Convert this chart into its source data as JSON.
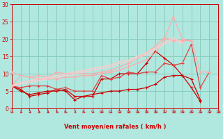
{
  "xlabel": "Vent moyen/en rafales ( km/h )",
  "xlabel_color": "#cc0000",
  "background_color": "#b0e8e0",
  "grid_color": "#88ccbb",
  "text_color": "#cc0000",
  "xlim": [
    0,
    23
  ],
  "ylim": [
    0,
    30
  ],
  "yticks": [
    0,
    5,
    10,
    15,
    20,
    25,
    30
  ],
  "xticks": [
    0,
    1,
    2,
    3,
    4,
    5,
    6,
    7,
    8,
    9,
    10,
    11,
    12,
    13,
    14,
    15,
    16,
    17,
    18,
    19,
    20,
    21,
    22,
    23
  ],
  "series": [
    {
      "x": [
        0,
        1,
        2,
        3,
        4,
        5,
        6,
        7,
        8,
        9,
        10,
        11,
        12,
        13,
        14,
        15,
        16,
        17,
        18,
        19,
        20,
        21,
        22,
        23
      ],
      "y": [
        6.5,
        5.5,
        3.5,
        4.0,
        4.5,
        5.5,
        5.0,
        2.5,
        3.5,
        3.5,
        8.5,
        8.5,
        10.0,
        10.0,
        10.0,
        13.0,
        16.5,
        14.5,
        12.5,
        9.5,
        6.0,
        2.0,
        null,
        null
      ],
      "color": "#cc0000",
      "lw": 0.9,
      "marker": "+",
      "ms": 3.5
    },
    {
      "x": [
        0,
        1,
        2,
        3,
        4,
        5,
        6,
        7,
        8,
        9,
        10,
        11,
        12,
        13,
        14,
        15,
        16,
        17,
        18,
        19,
        20,
        21,
        22,
        23
      ],
      "y": [
        6.5,
        5.0,
        4.0,
        4.5,
        5.0,
        5.0,
        5.5,
        3.5,
        3.5,
        4.0,
        4.5,
        5.0,
        5.0,
        5.5,
        5.5,
        6.0,
        7.0,
        9.0,
        9.5,
        9.5,
        8.5,
        2.5,
        null,
        null
      ],
      "color": "#cc0000",
      "lw": 0.9,
      "marker": "+",
      "ms": 3.5
    },
    {
      "x": [
        0,
        1,
        2,
        3,
        4,
        5,
        6,
        7,
        8,
        9,
        10,
        11,
        12,
        13,
        14,
        15,
        16,
        17,
        18,
        19,
        20,
        21,
        22,
        23
      ],
      "y": [
        6.5,
        6.0,
        6.5,
        6.5,
        6.5,
        5.5,
        6.0,
        5.0,
        5.0,
        5.0,
        9.5,
        8.5,
        9.0,
        10.5,
        10.0,
        10.5,
        10.5,
        13.0,
        12.5,
        13.0,
        18.5,
        6.0,
        10.5,
        null
      ],
      "color": "#dd4444",
      "lw": 0.9,
      "marker": "+",
      "ms": 3.5
    },
    {
      "x": [
        0,
        1,
        2,
        3,
        4,
        5,
        6,
        7,
        8,
        9,
        10,
        11,
        12,
        13,
        14,
        15,
        16,
        17,
        18,
        19,
        20,
        21,
        22,
        23
      ],
      "y": [
        6.5,
        9.5,
        9.0,
        8.5,
        8.5,
        8.5,
        9.0,
        9.0,
        9.5,
        9.5,
        10.0,
        10.5,
        11.0,
        12.0,
        13.0,
        14.0,
        16.0,
        20.0,
        26.5,
        20.0,
        19.5,
        null,
        null,
        null
      ],
      "color": "#ffaaaa",
      "lw": 0.9,
      "marker": "+",
      "ms": 3.5
    },
    {
      "x": [
        0,
        1,
        2,
        3,
        4,
        5,
        6,
        7,
        8,
        9,
        10,
        11,
        12,
        13,
        14,
        15,
        16,
        17,
        18,
        19,
        20,
        21,
        22,
        23
      ],
      "y": [
        10.5,
        9.5,
        9.0,
        9.5,
        9.0,
        10.5,
        10.0,
        10.0,
        10.0,
        10.0,
        10.5,
        11.0,
        12.0,
        13.0,
        14.5,
        16.0,
        18.0,
        20.5,
        19.5,
        19.5,
        19.5,
        10.5,
        10.5,
        null
      ],
      "color": "#ffaaaa",
      "lw": 0.9,
      "marker": "+",
      "ms": 3.5
    },
    {
      "x": [
        0,
        1,
        2,
        3,
        4,
        5,
        6,
        7,
        8,
        9,
        10,
        11,
        12,
        13,
        14,
        15,
        16,
        17,
        18,
        19,
        20,
        21,
        22,
        23
      ],
      "y": [
        6.5,
        7.0,
        7.5,
        8.0,
        8.5,
        9.0,
        9.5,
        10.0,
        10.5,
        11.0,
        11.5,
        12.0,
        13.0,
        13.5,
        14.5,
        15.5,
        17.0,
        18.5,
        20.0,
        18.5,
        null,
        null,
        null,
        null
      ],
      "color": "#ffcccc",
      "lw": 1.0,
      "marker": null,
      "ms": 0
    },
    {
      "x": [
        0,
        1,
        2,
        3,
        4,
        5,
        6,
        7,
        8,
        9,
        10,
        11,
        12,
        13,
        14,
        15,
        16,
        17,
        18,
        19,
        20,
        21,
        22,
        23
      ],
      "y": [
        6.5,
        7.5,
        8.0,
        8.5,
        9.0,
        9.5,
        10.0,
        10.5,
        11.0,
        11.5,
        12.0,
        12.5,
        13.5,
        14.0,
        15.0,
        16.0,
        17.5,
        19.0,
        20.5,
        19.0,
        null,
        null,
        null,
        null
      ],
      "color": "#ffcccc",
      "lw": 1.0,
      "marker": null,
      "ms": 0
    }
  ],
  "wind_x": [
    0,
    1,
    2,
    3,
    4,
    5,
    6,
    7,
    8,
    9,
    10,
    11,
    12,
    13,
    14,
    15,
    16,
    17,
    18,
    19,
    20,
    21,
    22,
    23
  ]
}
